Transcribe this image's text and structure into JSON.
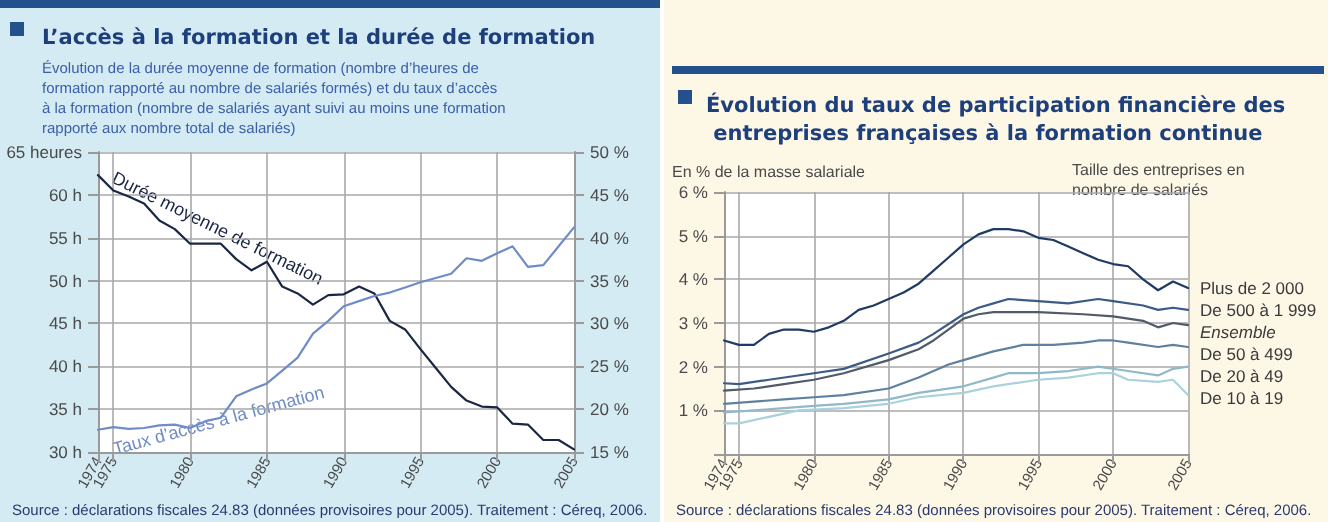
{
  "chart_data": [
    {
      "type": "line",
      "title": "L’accès à la formation et la durée de formation",
      "subtitle": "Évolution de la durée moyenne de formation (nombre d’heures de formation rapporté au nombre de salariés formés) et du taux d’accès à la formation (nombre de salariés ayant suivi au moins une formation rapporté aux nombre total de salariés)",
      "xlim": [
        1974,
        2005
      ],
      "xticks": [
        1974,
        1975,
        1980,
        1985,
        1990,
        1995,
        2000,
        2005
      ],
      "ylim": [
        30,
        65
      ],
      "yticks": [
        {
          "value": 30,
          "label": "30 h"
        },
        {
          "value": 35,
          "label": "35 h"
        },
        {
          "value": 40,
          "label": "40 h"
        },
        {
          "value": 45,
          "label": "45 h"
        },
        {
          "value": 50,
          "label": "50 h"
        },
        {
          "value": 55,
          "label": "55 h"
        },
        {
          "value": 60,
          "label": "60 h"
        },
        {
          "value": 65,
          "label": "65 heures"
        }
      ],
      "y2lim": [
        15,
        50
      ],
      "y2ticks": [
        {
          "value": 15,
          "label": "15 %"
        },
        {
          "value": 20,
          "label": "20 %"
        },
        {
          "value": 25,
          "label": "25 %"
        },
        {
          "value": 30,
          "label": "30 %"
        },
        {
          "value": 35,
          "label": "35 %"
        },
        {
          "value": 40,
          "label": "40 %"
        },
        {
          "value": 45,
          "label": "45 %"
        },
        {
          "value": 50,
          "label": "50 %"
        }
      ],
      "grid": true,
      "marker": "none",
      "line_style": "solid",
      "annotations": [
        "Source : déclarations fiscales 24.83 (données provisoires pour 2005). Traitement : Céreq, 2006."
      ],
      "series": [
        {
          "name": "Durée moyenne de formation",
          "color": "#1a2744",
          "x": [
            1974,
            1975,
            1976,
            1977,
            1978,
            1979,
            1980,
            1981,
            1982,
            1983,
            1984,
            1985,
            1986,
            1987,
            1988,
            1989,
            1990,
            1991,
            1992,
            1993,
            1994,
            1995,
            1996,
            1997,
            1998,
            1999,
            2000,
            2001,
            2002,
            2003,
            2004,
            2005
          ],
          "values": [
            62.3,
            60.5,
            59.8,
            59,
            57,
            56,
            54.3,
            54.3,
            54.3,
            52.5,
            51.2,
            52.2,
            49.3,
            48.5,
            47.2,
            48.3,
            48.4,
            49.3,
            48.5,
            45.3,
            44.3,
            42,
            39.8,
            37.6,
            36,
            35.3,
            35.2,
            33.3,
            33.2,
            31.4,
            31.4,
            30.3
          ]
        },
        {
          "name": "Taux d’accès à la formation",
          "color": "#6f8cc8",
          "axis": "y2",
          "x": [
            1974,
            1975,
            1976,
            1977,
            1978,
            1979,
            1980,
            1981,
            1982,
            1983,
            1984,
            1985,
            1986,
            1987,
            1988,
            1989,
            1990,
            1991,
            1992,
            1993,
            1994,
            1995,
            1996,
            1997,
            1998,
            1999,
            2000,
            2001,
            2002,
            2003,
            2004,
            2005
          ],
          "values": [
            17.6,
            17.9,
            17.7,
            17.8,
            18.1,
            18.2,
            17.8,
            18.6,
            19.0,
            21.5,
            22.3,
            23.0,
            24.5,
            26.0,
            28.8,
            30.3,
            32.0,
            32.6,
            33.2,
            33.6,
            34.2,
            34.8,
            35.3,
            35.8,
            37.6,
            37.3,
            38.2,
            39.0,
            36.6,
            36.8,
            39.0,
            41.2
          ]
        }
      ]
    },
    {
      "type": "line",
      "title": "Évolution du taux de participation financière des entreprises françaises à la formation continue",
      "ylabel": "En % de la masse salariale",
      "legend_title": "Taille des entreprises en nombre de salariés",
      "xlim": [
        1974,
        2005
      ],
      "xticks": [
        1974,
        1975,
        1980,
        1985,
        1990,
        1995,
        2000,
        2005
      ],
      "ylim": [
        0,
        6
      ],
      "yticks": [
        {
          "value": 0,
          "label": null
        },
        {
          "value": 1,
          "label": "1 %"
        },
        {
          "value": 2,
          "label": "2 %"
        },
        {
          "value": 3,
          "label": "3 %"
        },
        {
          "value": 4,
          "label": "4 %"
        },
        {
          "value": 5,
          "label": "5 %"
        },
        {
          "value": 6,
          "label": "6 %"
        }
      ],
      "grid": true,
      "legend": "right",
      "marker": "none",
      "line_style": "solid",
      "annotations": [
        "Source : déclarations fiscales 24.83 (données provisoires pour 2005). Traitement : Céreq, 2006."
      ],
      "series": [
        {
          "name": "Plus de 2 000",
          "color": "#1f3a63",
          "x": [
            1974,
            1975,
            1976,
            1977,
            1978,
            1979,
            1980,
            1981,
            1982,
            1983,
            1984,
            1985,
            1986,
            1987,
            1988,
            1989,
            1990,
            1991,
            1992,
            1993,
            1994,
            1995,
            1996,
            1997,
            1998,
            1999,
            2000,
            2001,
            2002,
            2003,
            2004,
            2005
          ],
          "values": [
            2.6,
            2.5,
            2.5,
            2.75,
            2.85,
            2.85,
            2.8,
            2.9,
            3.05,
            3.3,
            3.4,
            3.55,
            3.7,
            3.9,
            4.2,
            4.5,
            4.8,
            5.03,
            5.15,
            5.15,
            5.1,
            4.95,
            4.9,
            4.75,
            4.6,
            4.45,
            4.35,
            4.3,
            4.0,
            3.75,
            3.95,
            3.8
          ]
        },
        {
          "name": "De 500 à 1 999",
          "color": "#3b5a86",
          "x": [
            1974,
            1975,
            1977,
            1980,
            1982,
            1985,
            1987,
            1988,
            1990,
            1991,
            1992,
            1993,
            1995,
            1997,
            1999,
            2000,
            2002,
            2003,
            2004,
            2005
          ],
          "values": [
            1.62,
            1.6,
            1.7,
            1.85,
            1.95,
            2.3,
            2.55,
            2.75,
            3.2,
            3.35,
            3.45,
            3.55,
            3.5,
            3.45,
            3.55,
            3.5,
            3.4,
            3.3,
            3.35,
            3.3
          ]
        },
        {
          "name": "Ensemble",
          "color": "#505a68",
          "x": [
            1974,
            1976,
            1978,
            1980,
            1982,
            1985,
            1987,
            1988,
            1990,
            1991,
            1992,
            1995,
            1998,
            2000,
            2002,
            2003,
            2004,
            2005
          ],
          "values": [
            1.45,
            1.5,
            1.6,
            1.7,
            1.85,
            2.15,
            2.4,
            2.6,
            3.1,
            3.2,
            3.25,
            3.25,
            3.2,
            3.15,
            3.05,
            2.9,
            3.0,
            2.95
          ]
        },
        {
          "name": "De 50 à 499",
          "color": "#5f819f",
          "x": [
            1974,
            1976,
            1978,
            1980,
            1982,
            1985,
            1987,
            1989,
            1990,
            1992,
            1994,
            1996,
            1998,
            1999,
            2000,
            2001,
            2003,
            2004,
            2005
          ],
          "values": [
            1.15,
            1.2,
            1.25,
            1.3,
            1.35,
            1.5,
            1.75,
            2.05,
            2.15,
            2.35,
            2.5,
            2.5,
            2.55,
            2.6,
            2.6,
            2.55,
            2.45,
            2.5,
            2.45
          ]
        },
        {
          "name": "De 20 à 49",
          "color": "#8fb9c9",
          "x": [
            1974,
            1976,
            1978,
            1980,
            1982,
            1985,
            1987,
            1990,
            1992,
            1993,
            1995,
            1997,
            1999,
            2001,
            2003,
            2004,
            2005
          ],
          "values": [
            0.95,
            1.0,
            1.05,
            1.1,
            1.15,
            1.25,
            1.4,
            1.55,
            1.75,
            1.85,
            1.85,
            1.9,
            2.0,
            1.9,
            1.8,
            1.95,
            2.0
          ]
        },
        {
          "name": "De 10 à 19",
          "color": "#a9d2dd",
          "x": [
            1974,
            1975,
            1977,
            1979,
            1982,
            1985,
            1987,
            1990,
            1992,
            1995,
            1997,
            1999,
            2000,
            2001,
            2003,
            2004,
            2005
          ],
          "values": [
            0.7,
            0.7,
            0.85,
            1.0,
            1.05,
            1.15,
            1.3,
            1.4,
            1.55,
            1.7,
            1.75,
            1.85,
            1.85,
            1.7,
            1.65,
            1.7,
            1.35
          ]
        }
      ]
    }
  ]
}
